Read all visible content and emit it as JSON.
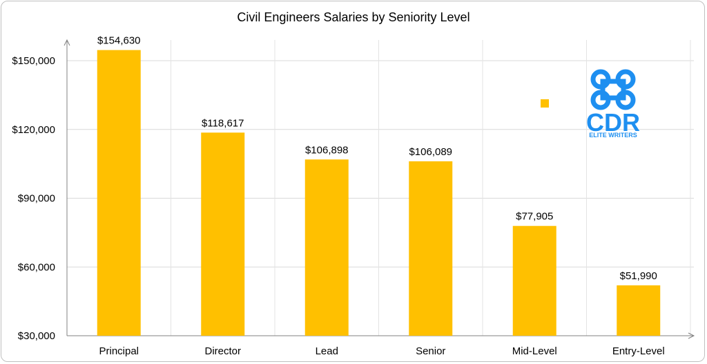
{
  "chart_data": {
    "type": "bar",
    "title": "Civil Engineers Salaries by Seniority Level",
    "xlabel": "",
    "ylabel": "",
    "categories": [
      "Principal",
      "Director",
      "Lead",
      "Senior",
      "Mid-Level",
      "Entry-Level"
    ],
    "values": [
      154630,
      118617,
      106898,
      106089,
      77905,
      51990
    ],
    "data_labels": [
      "$154,630",
      "$118,617",
      "$106,898",
      "$106,089",
      "$77,905",
      "$51,990"
    ],
    "y_ticks": [
      30000,
      60000,
      90000,
      120000,
      150000
    ],
    "y_tick_labels": [
      "$30,000",
      "$60,000",
      "$90,000",
      "$120,000",
      "$150,000"
    ],
    "ylim": [
      30000,
      160000
    ],
    "grid": true,
    "legend": "right",
    "bar_color": "#ffc000"
  },
  "logo": {
    "icon": "command-key-icon",
    "name": "CDR",
    "tagline": "ELITE WRITERS",
    "color": "#1e8ff0"
  }
}
